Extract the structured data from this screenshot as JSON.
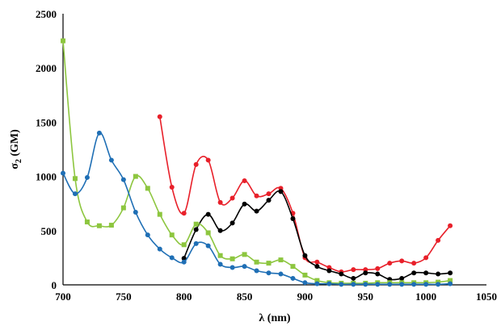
{
  "chart_data": {
    "type": "line",
    "xlabel": "λ (nm)",
    "ylabel_main": "σ",
    "ylabel_sub": "2",
    "ylabel_unit": " (GM)",
    "xlim": [
      700,
      1050
    ],
    "ylim": [
      0,
      2500
    ],
    "x_ticks": [
      700,
      750,
      800,
      850,
      900,
      950,
      1000,
      1050
    ],
    "y_ticks": [
      0,
      500,
      1000,
      1500,
      2000,
      2500
    ],
    "grid": false,
    "legend": "none",
    "series": [
      {
        "color": "#e8202a",
        "marker": "circle",
        "x": [
          780,
          790,
          800,
          810,
          820,
          830,
          840,
          850,
          860,
          870,
          880,
          890,
          900,
          910,
          920,
          930,
          940,
          950,
          960,
          970,
          980,
          990,
          1000,
          1010,
          1020
        ],
        "values": [
          1550,
          900,
          660,
          1110,
          1150,
          760,
          800,
          960,
          820,
          840,
          890,
          660,
          250,
          210,
          160,
          120,
          140,
          140,
          150,
          200,
          220,
          200,
          250,
          410,
          545
        ]
      },
      {
        "color": "#000000",
        "marker": "circle",
        "x": [
          800,
          810,
          820,
          830,
          840,
          850,
          860,
          870,
          880,
          890,
          900,
          910,
          920,
          930,
          940,
          950,
          960,
          970,
          980,
          990,
          1000,
          1010,
          1020
        ],
        "values": [
          245,
          510,
          650,
          500,
          570,
          745,
          680,
          780,
          860,
          610,
          270,
          170,
          130,
          100,
          60,
          110,
          100,
          50,
          60,
          110,
          110,
          100,
          110
        ]
      },
      {
        "color": "#8dc63f",
        "marker": "square",
        "x": [
          700,
          710,
          720,
          730,
          740,
          750,
          760,
          770,
          780,
          790,
          800,
          810,
          820,
          830,
          840,
          850,
          860,
          870,
          880,
          890,
          900,
          910,
          920,
          930,
          940,
          950,
          960,
          970,
          980,
          990,
          1000,
          1010,
          1020
        ],
        "values": [
          2250,
          980,
          580,
          545,
          550,
          710,
          1000,
          890,
          650,
          460,
          370,
          560,
          480,
          270,
          240,
          280,
          210,
          200,
          230,
          170,
          90,
          40,
          20,
          15,
          15,
          15,
          20,
          20,
          20,
          20,
          20,
          25,
          40
        ]
      },
      {
        "color": "#1f6fb5",
        "marker": "circle",
        "x": [
          700,
          710,
          720,
          730,
          740,
          750,
          760,
          770,
          780,
          790,
          800,
          810,
          820,
          830,
          840,
          850,
          860,
          870,
          880,
          890,
          900,
          910,
          920,
          930,
          940,
          950,
          960,
          970,
          980,
          990,
          1000,
          1010,
          1020
        ],
        "values": [
          1030,
          840,
          990,
          1400,
          1150,
          970,
          670,
          460,
          330,
          250,
          210,
          380,
          360,
          190,
          160,
          170,
          130,
          110,
          100,
          60,
          20,
          10,
          10,
          5,
          5,
          5,
          5,
          5,
          5,
          5,
          5,
          5,
          10
        ]
      }
    ]
  }
}
